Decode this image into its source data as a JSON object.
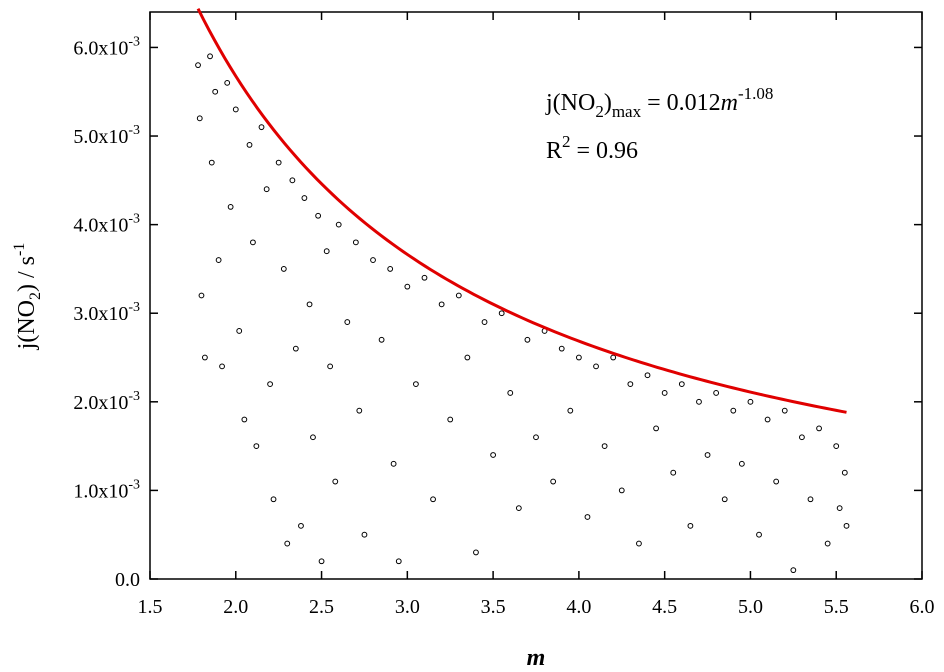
{
  "chart_data": {
    "type": "scatter",
    "title": "",
    "xlabel": "m",
    "ylabel_main": "j(NO",
    "ylabel_sub": "2",
    "ylabel_tail": ") / s",
    "ylabel_sup": "-1",
    "xlim": [
      1.5,
      6.0
    ],
    "ylim": [
      0.0,
      0.0064
    ],
    "x_ticks": [
      "1.5",
      "2.0",
      "2.5",
      "3.0",
      "3.5",
      "4.0",
      "4.5",
      "5.0",
      "5.5",
      "6.0"
    ],
    "x_tick_values": [
      1.5,
      2.0,
      2.5,
      3.0,
      3.5,
      4.0,
      4.5,
      5.0,
      5.5,
      6.0
    ],
    "y_ticks": [
      {
        "base": "0.0",
        "sup": ""
      },
      {
        "base": "1.0x10",
        "sup": "-3"
      },
      {
        "base": "2.0x10",
        "sup": "-3"
      },
      {
        "base": "3.0x10",
        "sup": "-3"
      },
      {
        "base": "4.0x10",
        "sup": "-3"
      },
      {
        "base": "5.0x10",
        "sup": "-3"
      },
      {
        "base": "6.0x10",
        "sup": "-3"
      }
    ],
    "y_tick_values": [
      0.0,
      0.001,
      0.002,
      0.003,
      0.004,
      0.005,
      0.006
    ],
    "fit": {
      "formula": "j = 0.012 * m^-1.08",
      "coefficient": 0.012,
      "exponent": -1.08,
      "x_range": [
        1.78,
        5.56
      ],
      "color": "#e00000"
    },
    "annotation": {
      "line1_a": "j(NO",
      "line1_sub": "2",
      "line1_b": ")",
      "line1_sub2": "max",
      "line1_c": " = 0.012",
      "line1_m": "m",
      "line1_sup": "-1.08",
      "line2_a": "R",
      "line2_sup": "2",
      "line2_b": " = 0.96"
    },
    "grid": false,
    "marker": {
      "shape": "open-circle",
      "color": "#000000"
    },
    "points": [
      [
        1.78,
        0.0058
      ],
      [
        1.79,
        0.0052
      ],
      [
        1.8,
        0.0032
      ],
      [
        1.82,
        0.0025
      ],
      [
        1.85,
        0.0059
      ],
      [
        1.86,
        0.0047
      ],
      [
        1.88,
        0.0055
      ],
      [
        1.9,
        0.0036
      ],
      [
        1.92,
        0.0024
      ],
      [
        1.95,
        0.0056
      ],
      [
        1.97,
        0.0042
      ],
      [
        2.0,
        0.0053
      ],
      [
        2.02,
        0.0028
      ],
      [
        2.05,
        0.0018
      ],
      [
        2.08,
        0.0049
      ],
      [
        2.1,
        0.0038
      ],
      [
        2.12,
        0.0015
      ],
      [
        2.15,
        0.0051
      ],
      [
        2.18,
        0.0044
      ],
      [
        2.2,
        0.0022
      ],
      [
        2.22,
        0.0009
      ],
      [
        2.25,
        0.0047
      ],
      [
        2.28,
        0.0035
      ],
      [
        2.3,
        0.0004
      ],
      [
        2.33,
        0.0045
      ],
      [
        2.35,
        0.0026
      ],
      [
        2.38,
        0.0006
      ],
      [
        2.4,
        0.0043
      ],
      [
        2.43,
        0.0031
      ],
      [
        2.45,
        0.0016
      ],
      [
        2.48,
        0.0041
      ],
      [
        2.5,
        0.0002
      ],
      [
        2.53,
        0.0037
      ],
      [
        2.55,
        0.0024
      ],
      [
        2.58,
        0.0011
      ],
      [
        2.6,
        0.004
      ],
      [
        2.65,
        0.0029
      ],
      [
        2.7,
        0.0038
      ],
      [
        2.72,
        0.0019
      ],
      [
        2.75,
        0.0005
      ],
      [
        2.8,
        0.0036
      ],
      [
        2.85,
        0.0027
      ],
      [
        2.9,
        0.0035
      ],
      [
        2.92,
        0.0013
      ],
      [
        2.95,
        0.0002
      ],
      [
        3.0,
        0.0033
      ],
      [
        3.05,
        0.0022
      ],
      [
        3.1,
        0.0034
      ],
      [
        3.15,
        0.0009
      ],
      [
        3.2,
        0.0031
      ],
      [
        3.25,
        0.0018
      ],
      [
        3.3,
        0.0032
      ],
      [
        3.35,
        0.0025
      ],
      [
        3.4,
        0.0003
      ],
      [
        3.45,
        0.0029
      ],
      [
        3.5,
        0.0014
      ],
      [
        3.55,
        0.003
      ],
      [
        3.6,
        0.0021
      ],
      [
        3.65,
        0.0008
      ],
      [
        3.7,
        0.0027
      ],
      [
        3.75,
        0.0016
      ],
      [
        3.8,
        0.0028
      ],
      [
        3.85,
        0.0011
      ],
      [
        3.9,
        0.0026
      ],
      [
        3.95,
        0.0019
      ],
      [
        4.0,
        0.0025
      ],
      [
        4.05,
        0.0007
      ],
      [
        4.1,
        0.0024
      ],
      [
        4.15,
        0.0015
      ],
      [
        4.2,
        0.0025
      ],
      [
        4.25,
        0.001
      ],
      [
        4.3,
        0.0022
      ],
      [
        4.35,
        0.0004
      ],
      [
        4.4,
        0.0023
      ],
      [
        4.45,
        0.0017
      ],
      [
        4.5,
        0.0021
      ],
      [
        4.55,
        0.0012
      ],
      [
        4.6,
        0.0022
      ],
      [
        4.65,
        0.0006
      ],
      [
        4.7,
        0.002
      ],
      [
        4.75,
        0.0014
      ],
      [
        4.8,
        0.0021
      ],
      [
        4.85,
        0.0009
      ],
      [
        4.9,
        0.0019
      ],
      [
        4.95,
        0.0013
      ],
      [
        5.0,
        0.002
      ],
      [
        5.05,
        0.0005
      ],
      [
        5.1,
        0.0018
      ],
      [
        5.15,
        0.0011
      ],
      [
        5.2,
        0.0019
      ],
      [
        5.25,
        0.0001
      ],
      [
        5.3,
        0.0016
      ],
      [
        5.35,
        0.0009
      ],
      [
        5.4,
        0.0017
      ],
      [
        5.45,
        0.0004
      ],
      [
        5.5,
        0.0015
      ],
      [
        5.52,
        0.0008
      ],
      [
        5.55,
        0.0012
      ],
      [
        5.56,
        0.0006
      ]
    ]
  }
}
